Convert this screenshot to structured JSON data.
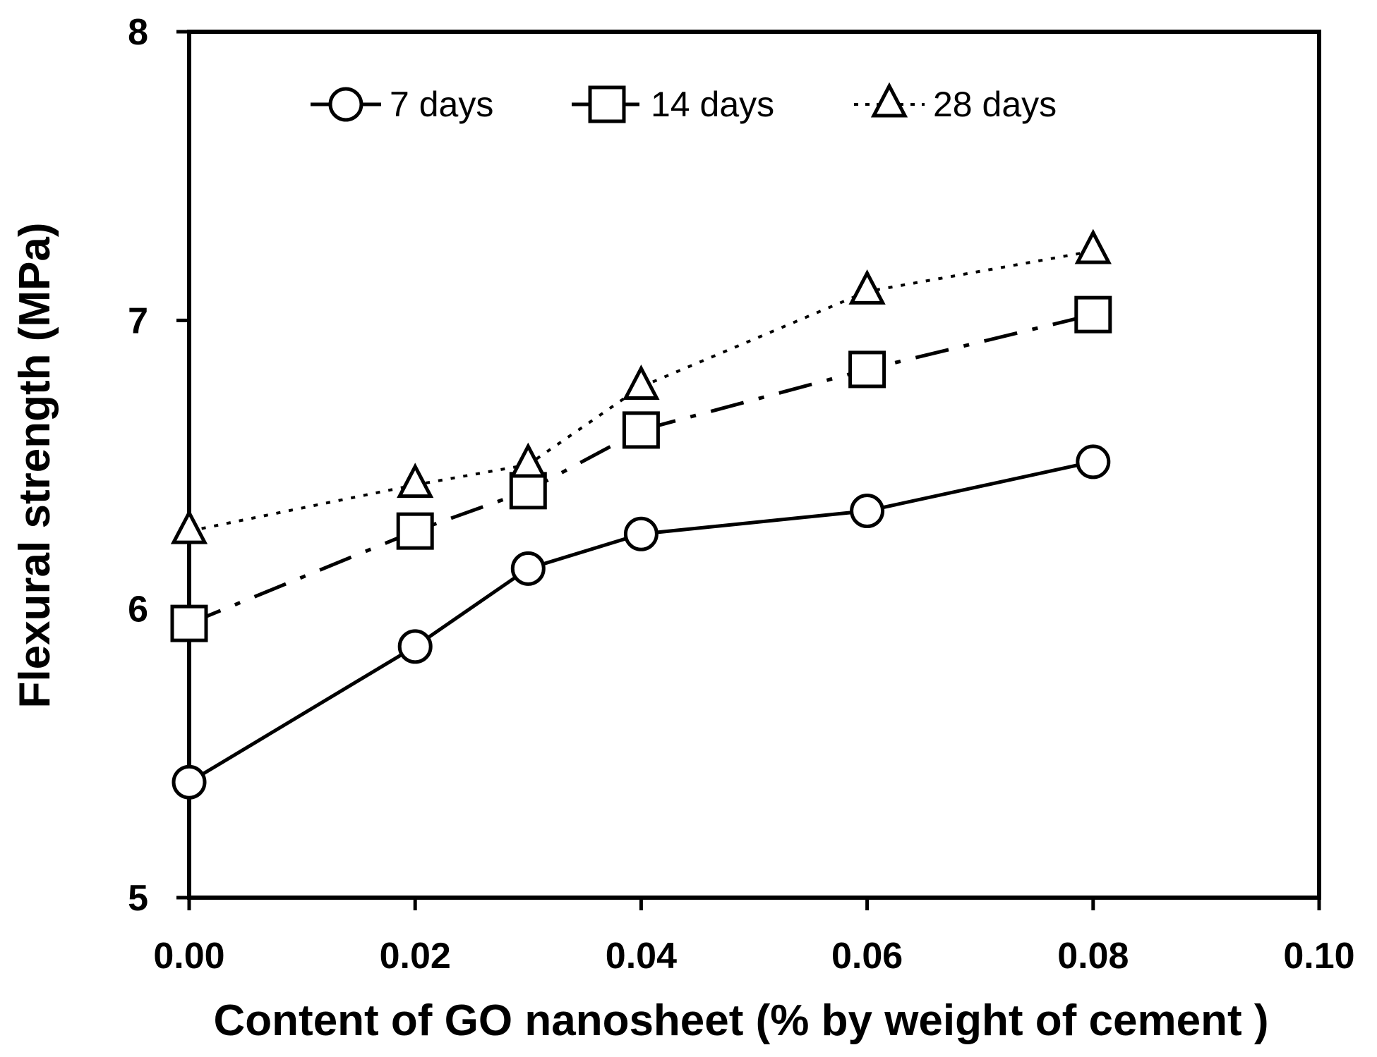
{
  "chart_data": {
    "type": "line",
    "title": "",
    "xlabel": "Content of GO nanosheet (% by weight of cement )",
    "ylabel": "Flexural strength (MPa)",
    "xlim": [
      0.0,
      0.1
    ],
    "ylim": [
      5,
      8
    ],
    "xticks": [
      "0.00",
      "0.02",
      "0.04",
      "0.06",
      "0.08",
      "0.10"
    ],
    "yticks": [
      "5",
      "6",
      "7",
      "8"
    ],
    "legend_position": "top",
    "x": [
      0.0,
      0.02,
      0.03,
      0.04,
      0.06,
      0.08
    ],
    "series": [
      {
        "name": "7 days",
        "marker": "circle",
        "line": "solid",
        "values": [
          5.4,
          5.87,
          6.14,
          6.26,
          6.34,
          6.51
        ]
      },
      {
        "name": "14 days",
        "marker": "square",
        "line": "dash-dot",
        "values": [
          5.95,
          6.27,
          6.41,
          6.62,
          6.83,
          7.02
        ]
      },
      {
        "name": "28 days",
        "marker": "triangle",
        "line": "dotted",
        "values": [
          6.27,
          6.43,
          6.5,
          6.77,
          7.1,
          7.24
        ]
      }
    ]
  }
}
